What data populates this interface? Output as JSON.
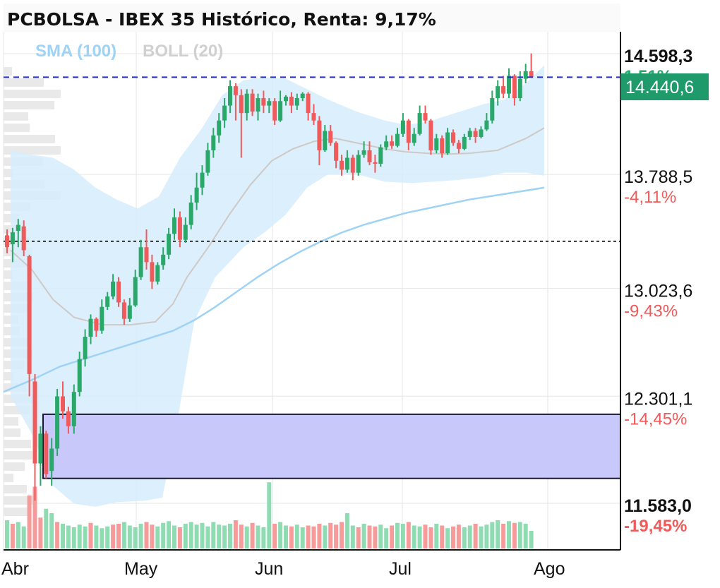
{
  "title": "PCBOLSA - IBEX 35 Histórico, Renta: 9,17%",
  "legend": [
    {
      "label": "SMA (100)",
      "color": "#9fd3f5"
    },
    {
      "label": "BOLL (20)",
      "color": "#d0d0d0"
    }
  ],
  "current_price_label": "14.440,6",
  "colors": {
    "up": "#2aa86a",
    "down": "#f05a5a",
    "price_tag": "#1f9a6a",
    "band": "#d6ecfb",
    "zone": "#c8c8fb",
    "current_line": "#1f2fd6"
  },
  "chart_data": {
    "type": "candlestick",
    "x_labels": [
      "Abr",
      "May",
      "Jun",
      "Jul",
      "Ago"
    ],
    "y_ticks": [
      {
        "price": "14.598,3",
        "pct": "1,51%"
      },
      {
        "price": "13.788,5",
        "pct": "-4,11%"
      },
      {
        "price": "13.023,6",
        "pct": "-9,43%"
      },
      {
        "price": "12.301,1",
        "pct": "-14,45%"
      },
      {
        "price": "11.583,0",
        "pct": "-19,45%"
      }
    ],
    "current_price": 14440.6,
    "reference_price": 13340,
    "zone": [
      11750,
      12180
    ],
    "ohlc": [
      [
        13380,
        13420,
        13260,
        13300
      ],
      [
        13320,
        13430,
        13200,
        13400
      ],
      [
        13410,
        13490,
        13300,
        13450
      ],
      [
        13440,
        13480,
        13240,
        13280
      ],
      [
        13240,
        13250,
        12300,
        12450
      ],
      [
        12400,
        12450,
        11600,
        11850
      ],
      [
        11850,
        12100,
        11700,
        12050
      ],
      [
        12050,
        12070,
        11750,
        11780
      ],
      [
        11800,
        12020,
        11700,
        11950
      ],
      [
        11950,
        12350,
        11900,
        12300
      ],
      [
        12300,
        12400,
        12150,
        12200
      ],
      [
        12200,
        12230,
        12050,
        12100
      ],
      [
        12100,
        12380,
        12050,
        12330
      ],
      [
        12330,
        12600,
        12300,
        12550
      ],
      [
        12550,
        12750,
        12500,
        12700
      ],
      [
        12700,
        12850,
        12650,
        12820
      ],
      [
        12820,
        12830,
        12700,
        12740
      ],
      [
        12740,
        12950,
        12720,
        12900
      ],
      [
        12900,
        13000,
        12880,
        12970
      ],
      [
        12970,
        13120,
        12950,
        13070
      ],
      [
        13070,
        13100,
        12900,
        12930
      ],
      [
        12930,
        12950,
        12780,
        12820
      ],
      [
        12820,
        12960,
        12800,
        12910
      ],
      [
        12910,
        13150,
        12900,
        13100
      ],
      [
        13100,
        13350,
        13080,
        13300
      ],
      [
        13300,
        13420,
        13150,
        13200
      ],
      [
        13200,
        13250,
        13020,
        13070
      ],
      [
        13070,
        13200,
        13050,
        13180
      ],
      [
        13180,
        13300,
        13150,
        13250
      ],
      [
        13250,
        13430,
        13220,
        13390
      ],
      [
        13390,
        13560,
        13350,
        13500
      ],
      [
        13500,
        13540,
        13300,
        13350
      ],
      [
        13350,
        13500,
        13330,
        13450
      ],
      [
        13450,
        13650,
        13420,
        13600
      ],
      [
        13600,
        13800,
        13550,
        13700
      ],
      [
        13700,
        13850,
        13650,
        13800
      ],
      [
        13800,
        14000,
        13780,
        13950
      ],
      [
        13950,
        14100,
        13900,
        14050
      ],
      [
        14050,
        14200,
        14000,
        14150
      ],
      [
        14150,
        14300,
        14100,
        14250
      ],
      [
        14250,
        14420,
        14200,
        14380
      ],
      [
        14380,
        14400,
        14150,
        14320
      ],
      [
        14320,
        14360,
        13900,
        14200
      ],
      [
        14200,
        14360,
        14150,
        14330
      ],
      [
        14330,
        14360,
        14180,
        14210
      ],
      [
        14210,
        14330,
        14150,
        14300
      ],
      [
        14300,
        14350,
        14200,
        14250
      ],
      [
        14250,
        14300,
        14200,
        14280
      ],
      [
        14280,
        14300,
        14120,
        14150
      ],
      [
        14150,
        14350,
        14140,
        14280
      ],
      [
        14280,
        14320,
        14250,
        14310
      ],
      [
        14310,
        14340,
        14200,
        14250
      ],
      [
        14250,
        14330,
        14220,
        14300
      ],
      [
        14300,
        14340,
        14280,
        14330
      ],
      [
        14330,
        14340,
        14150,
        14200
      ],
      [
        14200,
        14260,
        14120,
        14150
      ],
      [
        14150,
        14180,
        13850,
        13950
      ],
      [
        13950,
        14120,
        13940,
        14080
      ],
      [
        14080,
        14120,
        13980,
        14000
      ],
      [
        14000,
        14010,
        13830,
        13880
      ],
      [
        13880,
        13920,
        13780,
        13820
      ],
      [
        13820,
        13950,
        13800,
        13900
      ],
      [
        13900,
        13920,
        13750,
        13800
      ],
      [
        13800,
        13950,
        13780,
        13920
      ],
      [
        13920,
        14010,
        13900,
        13950
      ],
      [
        13950,
        14010,
        13850,
        13870
      ],
      [
        13870,
        13920,
        13800,
        13860
      ],
      [
        13860,
        13990,
        13840,
        13970
      ],
      [
        13970,
        14050,
        13950,
        14010
      ],
      [
        14010,
        14050,
        13960,
        13980
      ],
      [
        13980,
        14100,
        13970,
        14060
      ],
      [
        14060,
        14200,
        14040,
        14150
      ],
      [
        14150,
        14160,
        13950,
        14000
      ],
      [
        14000,
        14100,
        13980,
        14060
      ],
      [
        14060,
        14250,
        14050,
        14200
      ],
      [
        14200,
        14250,
        14130,
        14150
      ],
      [
        14150,
        14160,
        13920,
        13950
      ],
      [
        13950,
        14060,
        13930,
        14030
      ],
      [
        14030,
        14050,
        13900,
        13930
      ],
      [
        13930,
        14100,
        13920,
        14070
      ],
      [
        14070,
        14090,
        13980,
        14000
      ],
      [
        14000,
        14020,
        13930,
        13960
      ],
      [
        13960,
        14060,
        13950,
        14040
      ],
      [
        14040,
        14100,
        14020,
        14080
      ],
      [
        14080,
        14100,
        14000,
        14040
      ],
      [
        14040,
        14110,
        14030,
        14090
      ],
      [
        14090,
        14200,
        14080,
        14150
      ],
      [
        14150,
        14350,
        14130,
        14300
      ],
      [
        14300,
        14420,
        14250,
        14380
      ],
      [
        14380,
        14450,
        14300,
        14330
      ],
      [
        14330,
        14500,
        14300,
        14450
      ],
      [
        14450,
        14460,
        14250,
        14300
      ],
      [
        14300,
        14480,
        14280,
        14430
      ],
      [
        14430,
        14530,
        14400,
        14480
      ],
      [
        14480,
        14600,
        14440,
        14441
      ]
    ],
    "sma100": [
      [
        0,
        12330
      ],
      [
        40,
        12410
      ],
      [
        80,
        12500
      ],
      [
        120,
        12560
      ],
      [
        160,
        12620
      ],
      [
        200,
        12680
      ],
      [
        240,
        12740
      ],
      [
        270,
        12810
      ],
      [
        300,
        12900
      ],
      [
        330,
        13000
      ],
      [
        360,
        13100
      ],
      [
        390,
        13190
      ],
      [
        420,
        13270
      ],
      [
        450,
        13340
      ],
      [
        480,
        13400
      ],
      [
        510,
        13450
      ],
      [
        540,
        13490
      ],
      [
        570,
        13530
      ],
      [
        600,
        13560
      ],
      [
        630,
        13590
      ],
      [
        660,
        13620
      ],
      [
        700,
        13650
      ],
      [
        740,
        13680
      ],
      [
        766,
        13700
      ]
    ],
    "boll_mid": [
      [
        10,
        13280
      ],
      [
        40,
        13150
      ],
      [
        70,
        12950
      ],
      [
        100,
        12830
      ],
      [
        140,
        12780
      ],
      [
        180,
        12780
      ],
      [
        215,
        12800
      ],
      [
        240,
        12920
      ],
      [
        260,
        13100
      ],
      [
        290,
        13300
      ],
      [
        320,
        13520
      ],
      [
        350,
        13720
      ],
      [
        380,
        13880
      ],
      [
        410,
        13960
      ],
      [
        440,
        14010
      ],
      [
        470,
        14030
      ],
      [
        500,
        14000
      ],
      [
        540,
        13960
      ],
      [
        570,
        13940
      ],
      [
        600,
        13930
      ],
      [
        630,
        13925
      ],
      [
        660,
        13930
      ],
      [
        700,
        13950
      ],
      [
        740,
        14030
      ],
      [
        766,
        14100
      ]
    ],
    "boll_upper": [
      [
        10,
        13950
      ],
      [
        40,
        13920
      ],
      [
        70,
        13900
      ],
      [
        100,
        13820
      ],
      [
        130,
        13700
      ],
      [
        160,
        13620
      ],
      [
        190,
        13560
      ],
      [
        220,
        13640
      ],
      [
        250,
        13900
      ],
      [
        280,
        14090
      ],
      [
        310,
        14320
      ],
      [
        340,
        14420
      ],
      [
        370,
        14440
      ],
      [
        400,
        14430
      ],
      [
        430,
        14360
      ],
      [
        460,
        14290
      ],
      [
        500,
        14210
      ],
      [
        540,
        14150
      ],
      [
        570,
        14120
      ],
      [
        600,
        14140
      ],
      [
        640,
        14200
      ],
      [
        680,
        14260
      ],
      [
        710,
        14290
      ],
      [
        740,
        14400
      ],
      [
        766,
        14520
      ]
    ],
    "boll_lower": [
      [
        10,
        12300
      ],
      [
        40,
        12050
      ],
      [
        70,
        11700
      ],
      [
        100,
        11580
      ],
      [
        130,
        11560
      ],
      [
        160,
        11590
      ],
      [
        200,
        11600
      ],
      [
        225,
        11620
      ],
      [
        245,
        12100
      ],
      [
        270,
        12800
      ],
      [
        300,
        13100
      ],
      [
        340,
        13300
      ],
      [
        370,
        13400
      ],
      [
        400,
        13520
      ],
      [
        430,
        13700
      ],
      [
        460,
        13790
      ],
      [
        500,
        13790
      ],
      [
        540,
        13740
      ],
      [
        580,
        13730
      ],
      [
        610,
        13740
      ],
      [
        640,
        13750
      ],
      [
        680,
        13770
      ],
      [
        710,
        13800
      ],
      [
        740,
        13800
      ],
      [
        766,
        13780
      ]
    ],
    "volume": [
      [
        32,
        1
      ],
      [
        28,
        0
      ],
      [
        30,
        1
      ],
      [
        25,
        1
      ],
      [
        60,
        0
      ],
      [
        70,
        0
      ],
      [
        35,
        0
      ],
      [
        45,
        1
      ],
      [
        40,
        1
      ],
      [
        30,
        0
      ],
      [
        28,
        1
      ],
      [
        26,
        1
      ],
      [
        24,
        1
      ],
      [
        27,
        1
      ],
      [
        25,
        1
      ],
      [
        29,
        0
      ],
      [
        26,
        1
      ],
      [
        23,
        1
      ],
      [
        25,
        1
      ],
      [
        27,
        0
      ],
      [
        28,
        0
      ],
      [
        30,
        1
      ],
      [
        26,
        1
      ],
      [
        24,
        1
      ],
      [
        28,
        1
      ],
      [
        30,
        0
      ],
      [
        27,
        0
      ],
      [
        25,
        1
      ],
      [
        29,
        1
      ],
      [
        31,
        1
      ],
      [
        26,
        1
      ],
      [
        24,
        0
      ],
      [
        28,
        1
      ],
      [
        30,
        1
      ],
      [
        27,
        1
      ],
      [
        29,
        1
      ],
      [
        25,
        1
      ],
      [
        30,
        1
      ],
      [
        27,
        1
      ],
      [
        26,
        1
      ],
      [
        28,
        1
      ],
      [
        32,
        0
      ],
      [
        27,
        0
      ],
      [
        25,
        1
      ],
      [
        29,
        0
      ],
      [
        26,
        1
      ],
      [
        24,
        1
      ],
      [
        75,
        1
      ],
      [
        28,
        0
      ],
      [
        30,
        1
      ],
      [
        26,
        1
      ],
      [
        25,
        0
      ],
      [
        27,
        1
      ],
      [
        24,
        1
      ],
      [
        26,
        0
      ],
      [
        25,
        0
      ],
      [
        28,
        0
      ],
      [
        26,
        1
      ],
      [
        29,
        0
      ],
      [
        27,
        0
      ],
      [
        30,
        0
      ],
      [
        40,
        1
      ],
      [
        26,
        1
      ],
      [
        24,
        0
      ],
      [
        28,
        1
      ],
      [
        26,
        0
      ],
      [
        25,
        0
      ],
      [
        27,
        1
      ],
      [
        23,
        1
      ],
      [
        26,
        0
      ],
      [
        29,
        1
      ],
      [
        28,
        1
      ],
      [
        30,
        0
      ],
      [
        26,
        1
      ],
      [
        25,
        1
      ],
      [
        27,
        0
      ],
      [
        24,
        0
      ],
      [
        28,
        1
      ],
      [
        26,
        0
      ],
      [
        23,
        1
      ],
      [
        25,
        0
      ],
      [
        27,
        0
      ],
      [
        24,
        1
      ],
      [
        26,
        1
      ],
      [
        28,
        0
      ],
      [
        25,
        1
      ],
      [
        27,
        1
      ],
      [
        30,
        1
      ],
      [
        32,
        1
      ],
      [
        28,
        0
      ],
      [
        31,
        1
      ],
      [
        29,
        0
      ],
      [
        30,
        1
      ],
      [
        28,
        1
      ],
      [
        20,
        1
      ]
    ]
  }
}
